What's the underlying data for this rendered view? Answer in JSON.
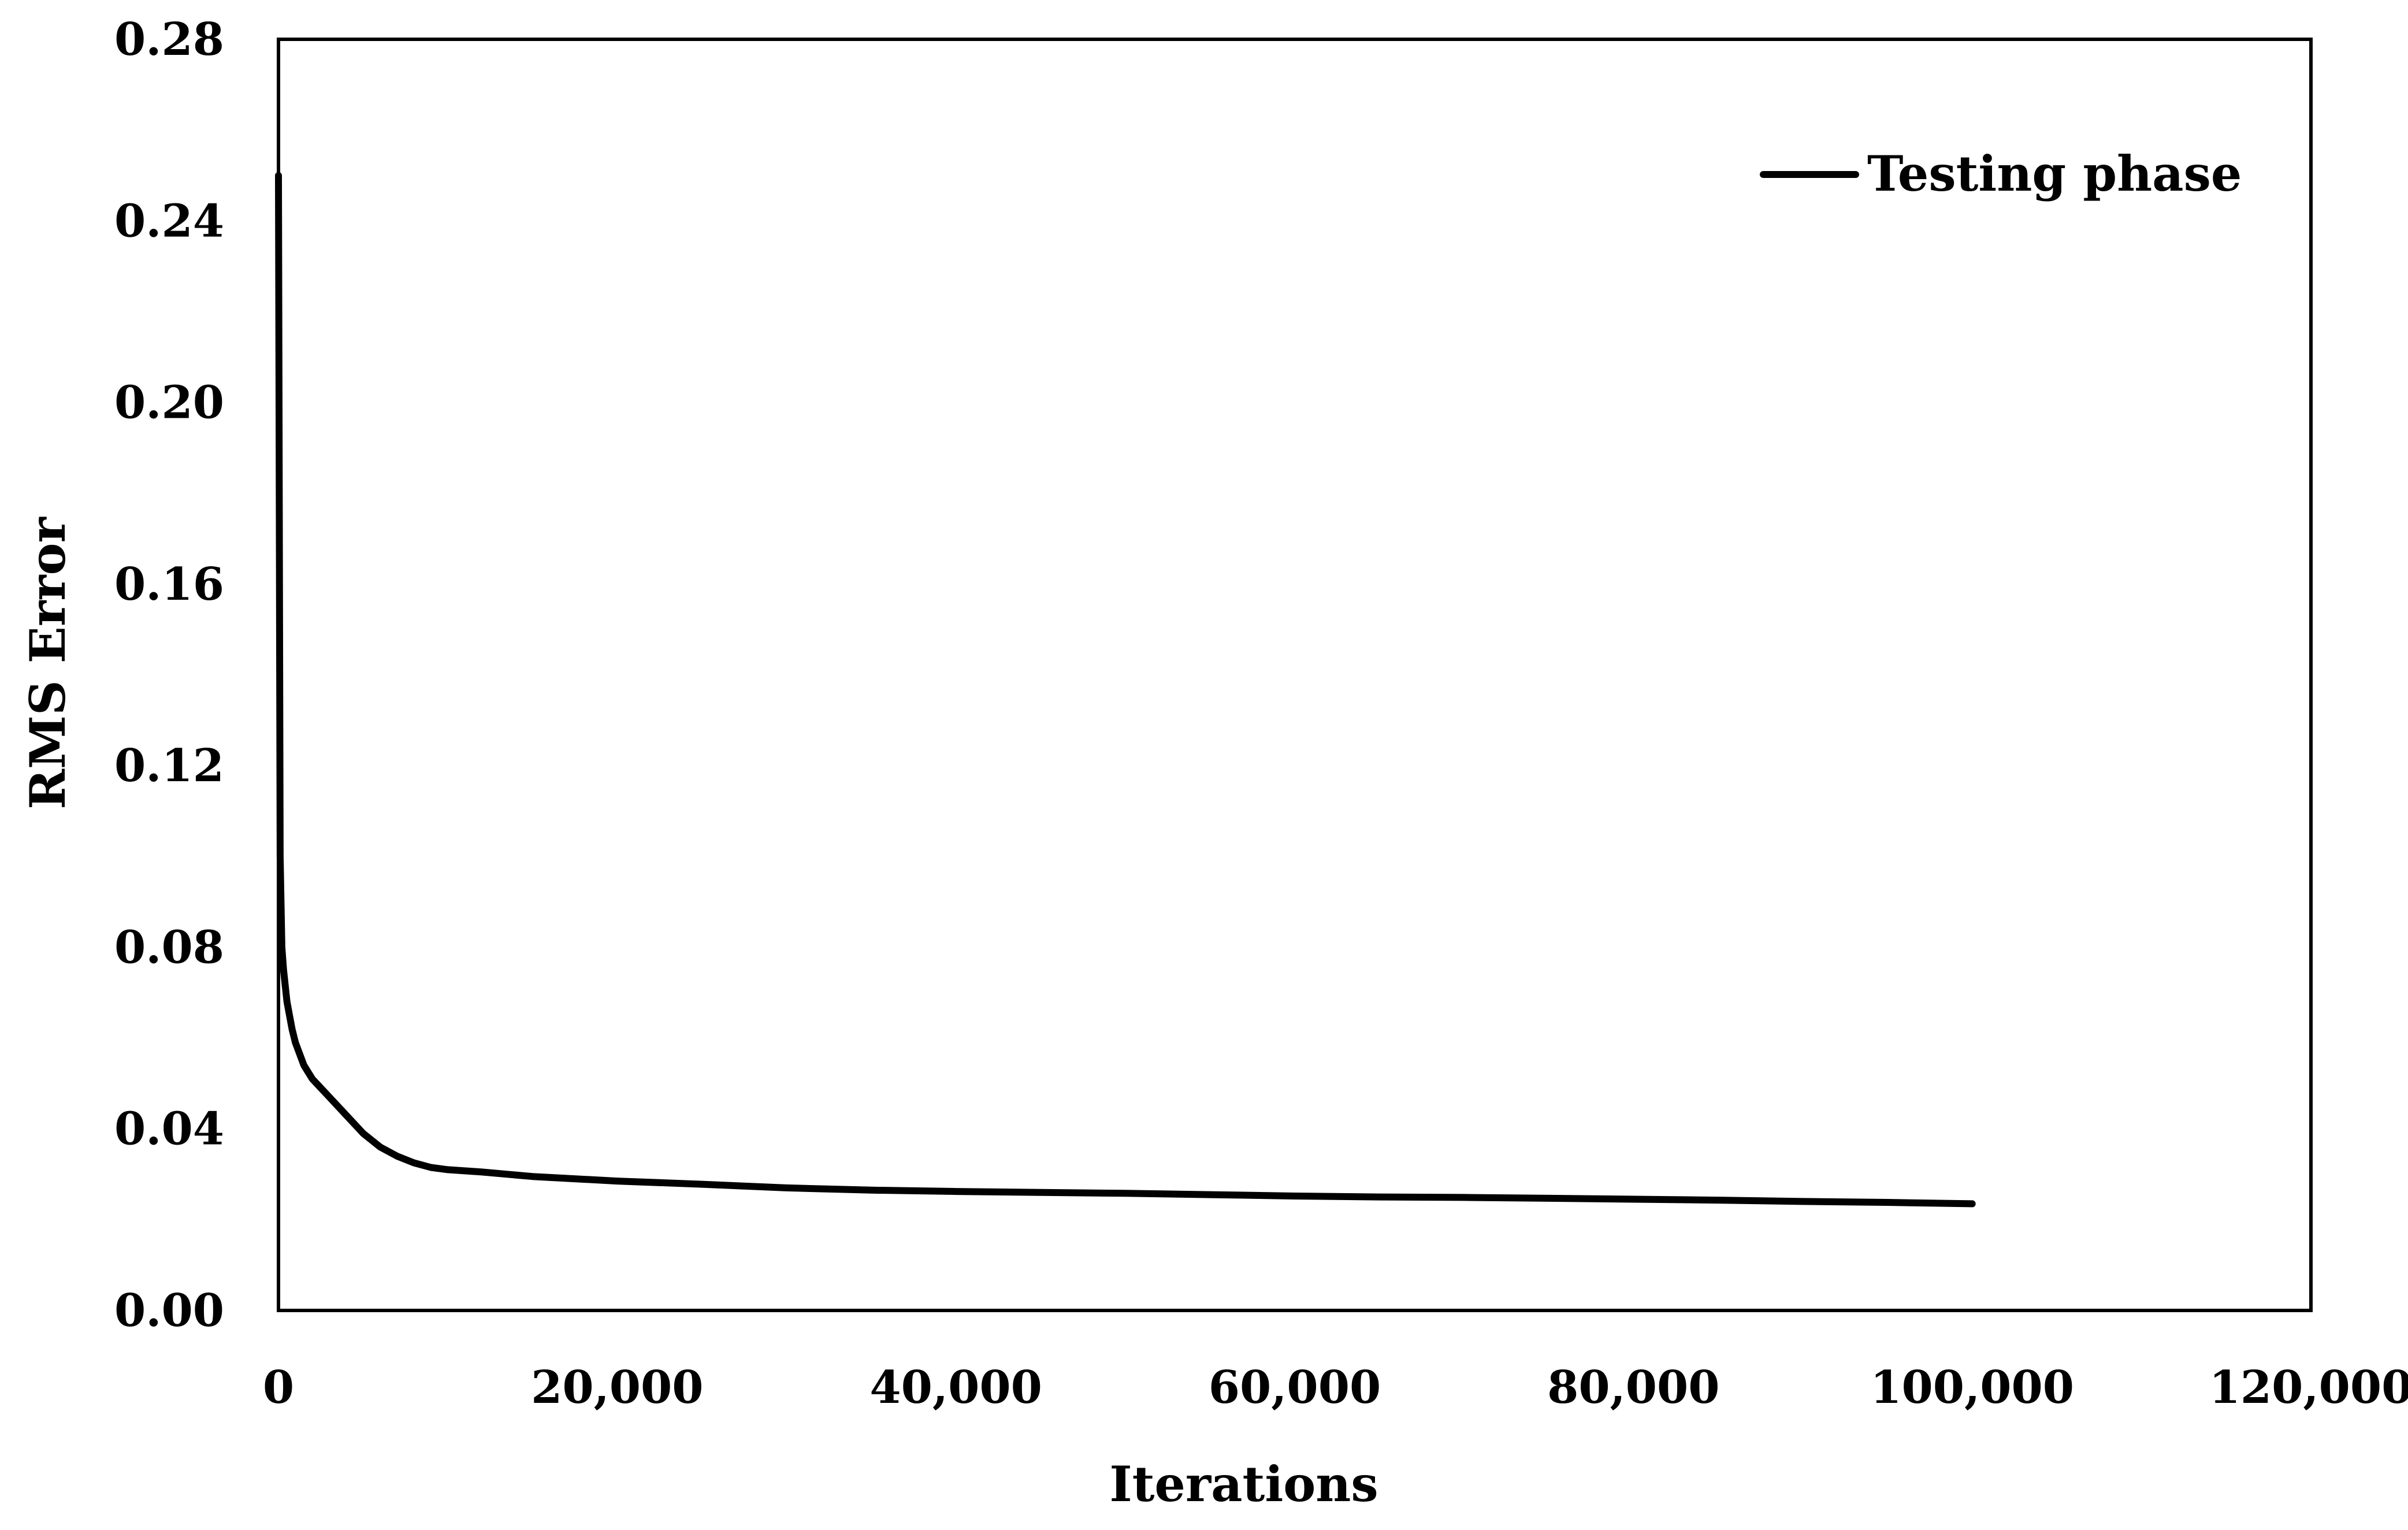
{
  "chart_data": {
    "type": "line",
    "title": "",
    "xlabel": "Iterations",
    "ylabel": "RMS Error",
    "xlim": [
      0,
      120000
    ],
    "ylim": [
      0,
      0.28
    ],
    "x_ticks": [
      0,
      20000,
      40000,
      60000,
      80000,
      100000,
      120000
    ],
    "x_tick_labels": [
      "0",
      "20,000",
      "40,000",
      "60,000",
      "80,000",
      "100,000",
      "120,000"
    ],
    "y_ticks": [
      0,
      0.04,
      0.08,
      0.12,
      0.16,
      0.2,
      0.24,
      0.28
    ],
    "y_tick_labels": [
      "0.00",
      "0.04",
      "0.08",
      "0.12",
      "0.16",
      "0.20",
      "0.24",
      "0.28"
    ],
    "grid": false,
    "legend_position": "top-right",
    "series": [
      {
        "name": "Testing phase",
        "color": "#000000",
        "x": [
          0,
          100,
          200,
          300,
          500,
          800,
          1000,
          1500,
          2000,
          2500,
          3000,
          4000,
          5000,
          6000,
          7000,
          8000,
          9000,
          10000,
          12000,
          15000,
          20000,
          25000,
          30000,
          35000,
          40000,
          45000,
          50000,
          55000,
          60000,
          65000,
          70000,
          75000,
          80000,
          85000,
          90000,
          95000,
          100000
        ],
        "y": [
          0.25,
          0.1,
          0.08,
          0.075,
          0.068,
          0.062,
          0.059,
          0.054,
          0.051,
          0.049,
          0.047,
          0.043,
          0.039,
          0.036,
          0.034,
          0.0325,
          0.0315,
          0.031,
          0.0305,
          0.0295,
          0.0285,
          0.0278,
          0.027,
          0.0265,
          0.0262,
          0.026,
          0.0258,
          0.0255,
          0.0252,
          0.025,
          0.0249,
          0.0247,
          0.0245,
          0.0243,
          0.024,
          0.0238,
          0.0235
        ]
      }
    ]
  }
}
